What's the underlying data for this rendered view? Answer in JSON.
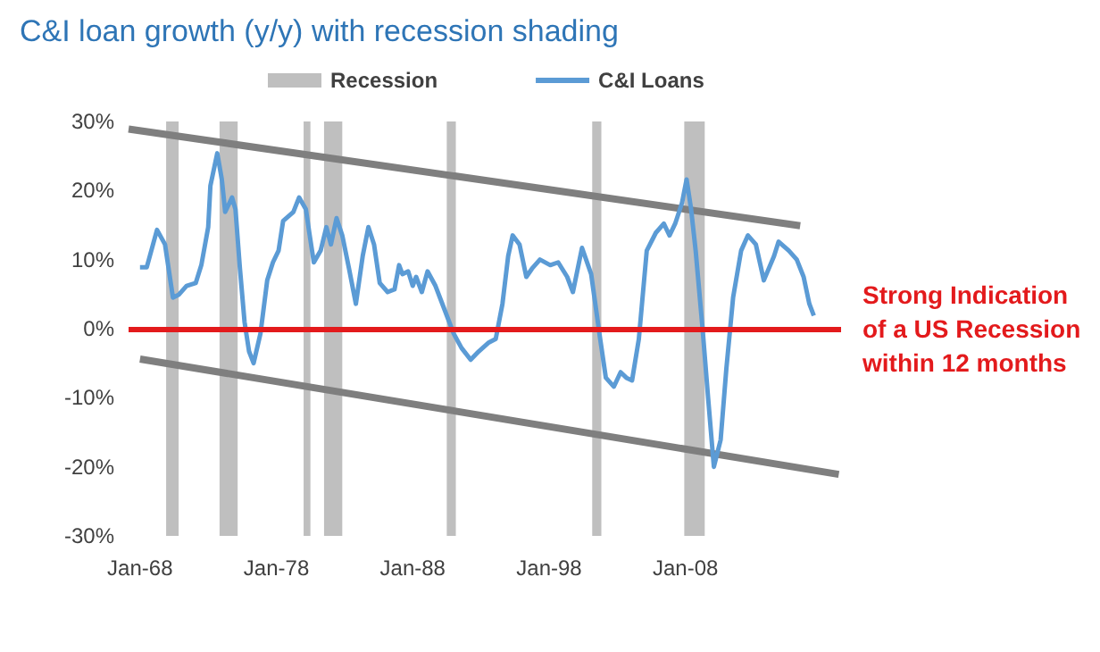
{
  "chart_data": {
    "type": "line",
    "title": "C&I loan growth (y/y) with recession shading",
    "xlim": [
      "1967-03",
      "2019-06"
    ],
    "xticks": [
      {
        "value": "1968-01",
        "label": "Jan-68"
      },
      {
        "value": "1978-01",
        "label": "Jan-78"
      },
      {
        "value": "1988-01",
        "label": "Jan-88"
      },
      {
        "value": "1998-01",
        "label": "Jan-98"
      },
      {
        "value": "2008-01",
        "label": "Jan-08"
      }
    ],
    "ylim": [
      -30,
      30
    ],
    "yticks": [
      {
        "value": -30,
        "label": "-30%"
      },
      {
        "value": -20,
        "label": "-20%"
      },
      {
        "value": -10,
        "label": "-10%"
      },
      {
        "value": 0,
        "label": "0%"
      },
      {
        "value": 10,
        "label": "10%"
      },
      {
        "value": 20,
        "label": "20%"
      },
      {
        "value": 30,
        "label": "30%"
      }
    ],
    "marker": "none",
    "grid": false,
    "legend": "top",
    "series": [
      {
        "name": "C&I Loans",
        "color": "#5b9bd5",
        "x": [
          "1968-01",
          "1968-07",
          "1969-04",
          "1969-11",
          "1970-06",
          "1970-11",
          "1971-06",
          "1972-02",
          "1972-07",
          "1973-01",
          "1973-03",
          "1973-09",
          "1974-01",
          "1974-04",
          "1974-10",
          "1975-01",
          "1975-05",
          "1975-09",
          "1976-01",
          "1976-05",
          "1976-11",
          "1977-05",
          "1977-10",
          "1978-03",
          "1978-07",
          "1979-04",
          "1979-09",
          "1980-03",
          "1980-06",
          "1980-10",
          "1981-04",
          "1981-09",
          "1982-01",
          "1982-06",
          "1982-11",
          "1983-05",
          "1983-11",
          "1984-05",
          "1984-10",
          "1985-03",
          "1985-08",
          "1986-03",
          "1986-09",
          "1987-01",
          "1987-04",
          "1987-09",
          "1988-01",
          "1988-04",
          "1988-09",
          "1989-02",
          "1989-09",
          "1990-04",
          "1991-01",
          "1991-08",
          "1992-04",
          "1992-11",
          "1993-08",
          "1994-02",
          "1994-08",
          "1995-01",
          "1995-05",
          "1995-11",
          "1996-05",
          "1996-10",
          "1997-05",
          "1998-02",
          "1998-09",
          "1999-05",
          "1999-10",
          "2000-06",
          "2001-02",
          "2001-10",
          "2002-03",
          "2002-10",
          "2003-04",
          "2003-09",
          "2004-02",
          "2004-08",
          "2005-03",
          "2005-11",
          "2006-06",
          "2006-11",
          "2007-04",
          "2007-10",
          "2008-02",
          "2008-06",
          "2008-10",
          "2009-04",
          "2009-09",
          "2010-02",
          "2010-08",
          "2011-01",
          "2011-07",
          "2012-02",
          "2012-08",
          "2013-03",
          "2013-10",
          "2014-07",
          "2014-11",
          "2015-08",
          "2016-03",
          "2016-09",
          "2017-02",
          "2017-06"
        ],
        "values": [
          8.9,
          8.9,
          14.3,
          12.2,
          4.5,
          4.9,
          6.2,
          6.6,
          9.2,
          14.7,
          20.7,
          25.4,
          21.6,
          16.9,
          19.0,
          17.3,
          8.7,
          1.0,
          -3.3,
          -5.0,
          -0.7,
          7.0,
          9.6,
          11.3,
          15.6,
          16.9,
          19.0,
          17.3,
          13.9,
          9.6,
          11.3,
          14.7,
          12.2,
          16.0,
          13.5,
          8.7,
          3.6,
          10.5,
          14.7,
          12.2,
          6.6,
          5.3,
          5.7,
          9.2,
          7.9,
          8.3,
          6.2,
          7.5,
          5.3,
          8.3,
          6.2,
          3.2,
          -0.7,
          -2.8,
          -4.5,
          -3.3,
          -2.0,
          -1.5,
          3.6,
          10.5,
          13.5,
          12.2,
          7.5,
          8.7,
          10.0,
          9.2,
          9.6,
          7.5,
          5.3,
          11.7,
          7.9,
          -1.5,
          -7.1,
          -8.4,
          -6.3,
          -7.1,
          -7.5,
          -1.5,
          11.3,
          13.9,
          15.2,
          13.5,
          15.2,
          18.2,
          21.6,
          17.3,
          11.3,
          0.2,
          -10.1,
          -20.0,
          -16.1,
          -5.8,
          4.5,
          11.3,
          13.5,
          12.2,
          7.0,
          10.5,
          12.6,
          11.3,
          10.0,
          7.5,
          3.6,
          1.9
        ]
      },
      {
        "type": "line",
        "color": "#7f7f7f",
        "x": [
          "1967-03",
          "2016-06"
        ],
        "values": [
          28.9,
          14.9
        ]
      },
      {
        "type": "line",
        "color": "#7f7f7f",
        "x": [
          "1968-01",
          "2019-04"
        ],
        "values": [
          -4.4,
          -21.1
        ]
      }
    ],
    "bands": [
      {
        "axis": "x",
        "from": "1969-12",
        "to": "1970-11",
        "label": "Recession",
        "color": "#bfbfbf"
      },
      {
        "axis": "x",
        "from": "1973-11",
        "to": "1975-03",
        "color": "#bfbfbf"
      },
      {
        "axis": "x",
        "from": "1980-01",
        "to": "1980-07",
        "color": "#bfbfbf"
      },
      {
        "axis": "x",
        "from": "1981-07",
        "to": "1982-11",
        "color": "#bfbfbf"
      },
      {
        "axis": "x",
        "from": "1990-07",
        "to": "1991-03",
        "color": "#bfbfbf"
      },
      {
        "axis": "x",
        "from": "2001-03",
        "to": "2001-11",
        "color": "#bfbfbf"
      },
      {
        "axis": "x",
        "from": "2007-12",
        "to": "2009-06",
        "color": "#bfbfbf"
      }
    ],
    "ref_lines": [
      {
        "axis": "y",
        "value": 0,
        "label": "Strong Indication of a US Recession within 12 months",
        "color": "#e31a1c"
      }
    ]
  }
}
